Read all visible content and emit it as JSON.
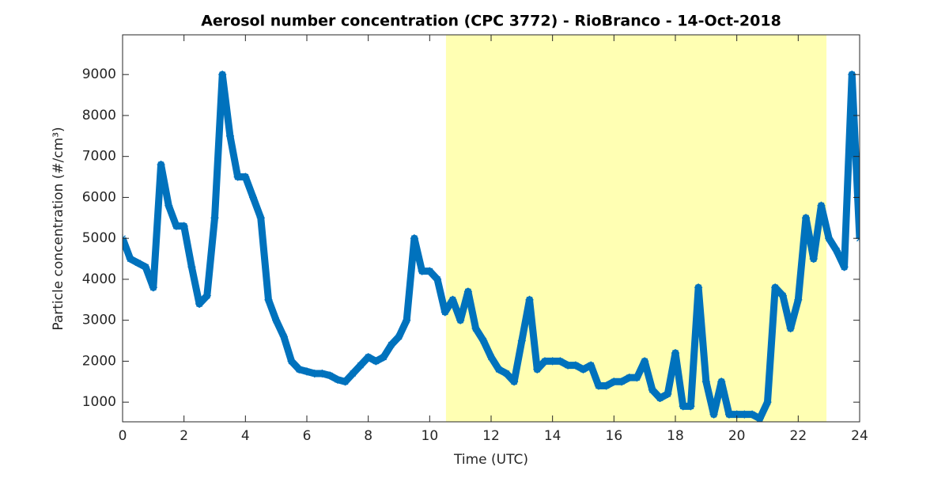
{
  "chart_data": {
    "type": "line",
    "title": "Aerosol number concentration (CPC 3772) - RioBranco - 14-Oct-2018",
    "xlabel": "Time (UTC)",
    "ylabel": "Particle concentration (#/cm³)",
    "shaded_region": [
      10.53,
      22.92
    ],
    "shaded_color": "#ffffb3",
    "xlim": [
      0,
      24
    ],
    "xticks": [
      0,
      2,
      4,
      6,
      8,
      10,
      12,
      14,
      16,
      18,
      20,
      22,
      24
    ],
    "ylim": [
      520,
      9970
    ],
    "yticks": [
      1000,
      2000,
      3000,
      4000,
      5000,
      6000,
      7000,
      8000,
      9000
    ],
    "series": [
      {
        "color": "#0072bd",
        "marker": "*",
        "x": [
          0,
          0.25,
          0.5,
          0.75,
          1,
          1.25,
          1.5,
          1.75,
          2,
          2.25,
          2.5,
          2.75,
          3,
          3.25,
          3.5,
          3.75,
          4,
          4.25,
          4.5,
          4.75,
          5,
          5.25,
          5.5,
          5.75,
          6,
          6.25,
          6.5,
          6.75,
          7,
          7.25,
          7.5,
          7.75,
          8,
          8.25,
          8.5,
          8.75,
          9,
          9.25,
          9.5,
          9.75,
          10,
          10.25,
          10.5,
          10.75,
          11,
          11.25,
          11.5,
          11.75,
          12,
          12.25,
          12.5,
          12.75,
          13,
          13.25,
          13.5,
          13.75,
          14,
          14.25,
          14.5,
          14.75,
          15,
          15.25,
          15.5,
          15.75,
          16,
          16.25,
          16.5,
          16.75,
          17,
          17.25,
          17.5,
          17.75,
          18,
          18.25,
          18.5,
          18.75,
          19,
          19.25,
          19.5,
          19.75,
          20,
          20.25,
          20.5,
          20.75,
          21,
          21.25,
          21.5,
          21.75,
          22,
          22.25,
          22.5,
          22.75,
          23,
          23.25,
          23.5,
          23.75,
          24
        ],
        "values": [
          5000,
          4500,
          4400,
          4300,
          3800,
          6800,
          5800,
          5300,
          5300,
          4300,
          3400,
          3600,
          5500,
          9000,
          7500,
          6500,
          6500,
          6000,
          5500,
          3500,
          3000,
          2600,
          2000,
          1800,
          1750,
          1700,
          1700,
          1650,
          1550,
          1500,
          1700,
          1900,
          2100,
          2000,
          2100,
          2400,
          2600,
          3000,
          5000,
          4200,
          4200,
          4000,
          3200,
          3500,
          3000,
          3700,
          2800,
          2500,
          2100,
          1800,
          1700,
          1500,
          2500,
          3500,
          1800,
          2000,
          2000,
          2000,
          1900,
          1900,
          1800,
          1900,
          1400,
          1400,
          1500,
          1500,
          1600,
          1600,
          2000,
          1300,
          1100,
          1200,
          2200,
          900,
          900,
          3800,
          1500,
          700,
          1500,
          700,
          700,
          700,
          700,
          600,
          1000,
          3800,
          3600,
          2800,
          3500,
          5500,
          4500,
          5800,
          5000,
          4700,
          4300,
          9000,
          5000
        ]
      }
    ]
  }
}
